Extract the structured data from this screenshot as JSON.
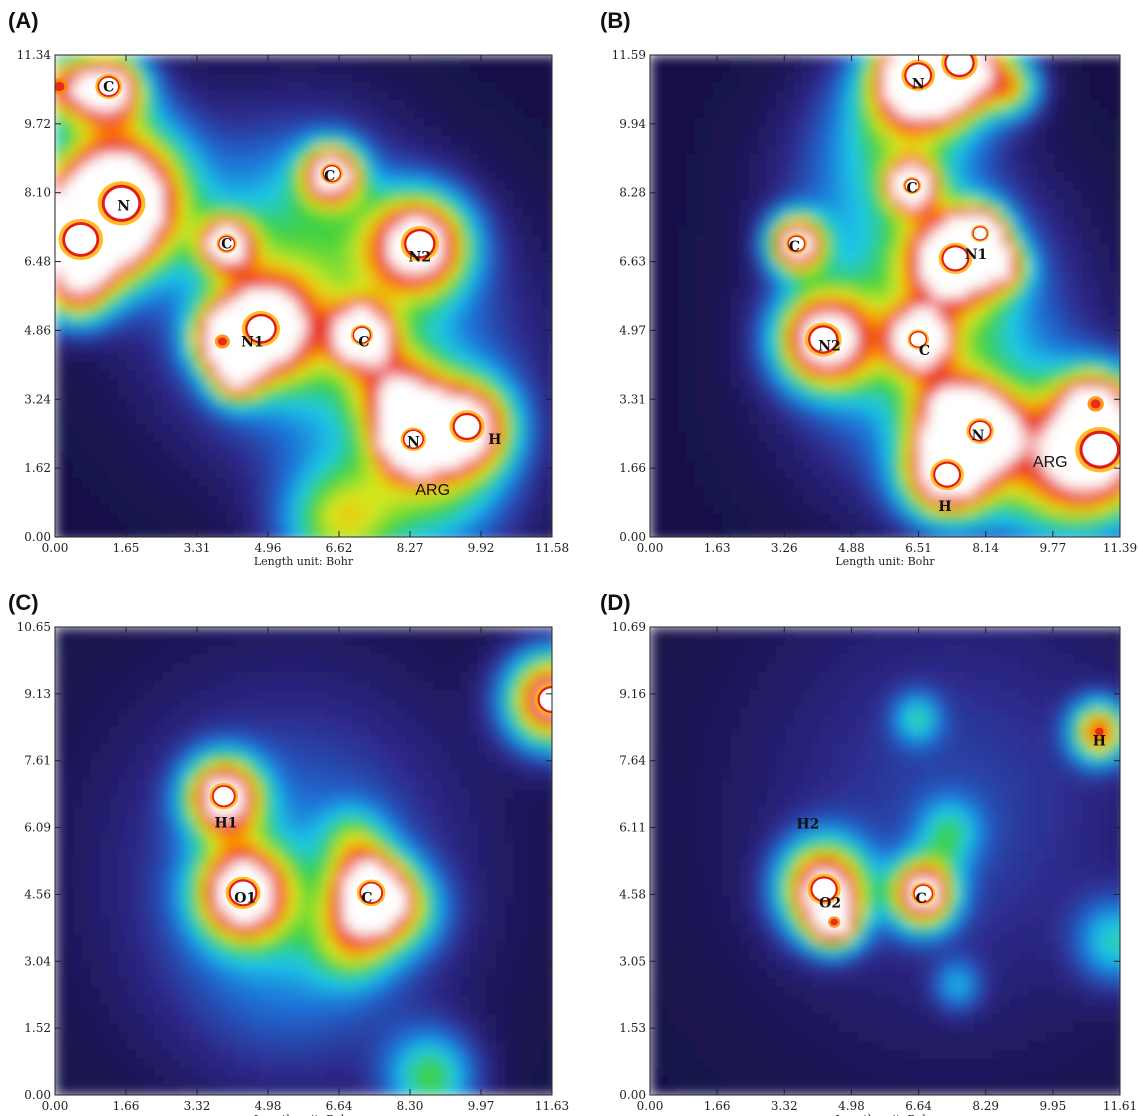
{
  "figure": {
    "panels": [
      "(A)",
      "(B)",
      "(C)",
      "(D)"
    ]
  },
  "chart_data": [
    {
      "type": "heatmap",
      "panel": "(A)",
      "xlabel": "Length unit: Bohr",
      "ylabel": "",
      "xlim": [
        0,
        11.58
      ],
      "ylim": [
        0,
        11.34
      ],
      "xticks": [
        "0.00",
        "1.65",
        "3.31",
        "4.96",
        "6.62",
        "8.27",
        "9.92",
        "11.58"
      ],
      "yticks": [
        "0.00",
        "1.62",
        "3.24",
        "4.86",
        "6.48",
        "8.10",
        "9.72",
        "11.34"
      ],
      "colormap": [
        "#140c3c",
        "#2e2a8c",
        "#1f6fd6",
        "#1ec8e8",
        "#3fd23f",
        "#d8e81e",
        "#ff8a00",
        "#e31a1a",
        "#ffffff"
      ],
      "annotations": [
        {
          "text": "C",
          "x": 1.25,
          "y": 10.6,
          "style": "serif"
        },
        {
          "text": "N",
          "x": 1.6,
          "y": 7.8,
          "style": "serif"
        },
        {
          "text": "C",
          "x": 6.4,
          "y": 8.5,
          "style": "serif"
        },
        {
          "text": "C",
          "x": 4.0,
          "y": 6.9,
          "style": "serif"
        },
        {
          "text": "N2",
          "x": 8.5,
          "y": 6.6,
          "style": "serif"
        },
        {
          "text": "N1",
          "x": 4.6,
          "y": 4.6,
          "style": "serif"
        },
        {
          "text": "C",
          "x": 7.2,
          "y": 4.6,
          "style": "serif"
        },
        {
          "text": "N",
          "x": 8.35,
          "y": 2.25,
          "style": "serif"
        },
        {
          "text": "H",
          "x": 10.25,
          "y": 2.3,
          "style": "serif"
        },
        {
          "text": "ARG",
          "x": 8.8,
          "y": 1.1,
          "style": "sans"
        }
      ],
      "peaks": [
        {
          "x": 1.25,
          "y": 10.6,
          "r": 0.42,
          "v": 1.0
        },
        {
          "x": 1.55,
          "y": 7.85,
          "r": 0.75,
          "v": 1.0
        },
        {
          "x": 0.6,
          "y": 7.0,
          "r": 0.7,
          "v": 1.0
        },
        {
          "x": 0.1,
          "y": 10.6,
          "r": 0.4,
          "v": 0.6
        },
        {
          "x": 1.4,
          "y": 9.0,
          "r": 0.9,
          "v": 0.35
        },
        {
          "x": 0.5,
          "y": 5.7,
          "r": 0.4,
          "v": 0.45
        },
        {
          "x": 6.45,
          "y": 8.55,
          "r": 0.35,
          "v": 0.95
        },
        {
          "x": 4.0,
          "y": 6.9,
          "r": 0.32,
          "v": 0.85
        },
        {
          "x": 8.5,
          "y": 6.9,
          "r": 0.6,
          "v": 1.0
        },
        {
          "x": 4.8,
          "y": 4.9,
          "r": 0.6,
          "v": 1.0
        },
        {
          "x": 3.9,
          "y": 4.6,
          "r": 0.35,
          "v": 0.7
        },
        {
          "x": 4.2,
          "y": 3.7,
          "r": 0.3,
          "v": 0.5
        },
        {
          "x": 7.15,
          "y": 4.75,
          "r": 0.35,
          "v": 1.0
        },
        {
          "x": 8.35,
          "y": 2.3,
          "r": 0.4,
          "v": 1.0
        },
        {
          "x": 9.6,
          "y": 2.6,
          "r": 0.55,
          "v": 0.9
        },
        {
          "x": 8.0,
          "y": 3.4,
          "r": 0.5,
          "v": 0.55
        },
        {
          "x": 8.8,
          "y": 1.2,
          "r": 0.9,
          "v": 0.4
        },
        {
          "x": 6.6,
          "y": 0.3,
          "r": 0.7,
          "v": 0.5
        },
        {
          "x": 5.2,
          "y": 5.5,
          "r": 1.5,
          "v": 0.28
        },
        {
          "x": 7.8,
          "y": 4.0,
          "r": 1.6,
          "v": 0.3
        },
        {
          "x": 5.7,
          "y": 7.8,
          "r": 1.2,
          "v": 0.22
        }
      ]
    },
    {
      "type": "heatmap",
      "panel": "(B)",
      "xlabel": "Length unit: Bohr",
      "ylabel": "",
      "xlim": [
        0,
        11.39
      ],
      "ylim": [
        0,
        11.59
      ],
      "xticks": [
        "0.00",
        "1.63",
        "3.26",
        "4.88",
        "6.51",
        "8.14",
        "9.77",
        "11.39"
      ],
      "yticks": [
        "0.00",
        "1.66",
        "3.31",
        "4.97",
        "6.63",
        "8.28",
        "9.94",
        "11.59"
      ],
      "colormap": [
        "#140c3c",
        "#2e2a8c",
        "#1f6fd6",
        "#1ec8e8",
        "#3fd23f",
        "#d8e81e",
        "#ff8a00",
        "#e31a1a",
        "#ffffff"
      ],
      "annotations": [
        {
          "text": "N",
          "x": 6.5,
          "y": 10.9,
          "style": "serif"
        },
        {
          "text": "C",
          "x": 6.35,
          "y": 8.4,
          "style": "serif"
        },
        {
          "text": "C",
          "x": 3.5,
          "y": 7.0,
          "style": "serif"
        },
        {
          "text": "N1",
          "x": 7.9,
          "y": 6.8,
          "style": "serif"
        },
        {
          "text": "N2",
          "x": 4.35,
          "y": 4.6,
          "style": "serif"
        },
        {
          "text": "C",
          "x": 6.65,
          "y": 4.5,
          "style": "serif"
        },
        {
          "text": "N",
          "x": 7.95,
          "y": 2.45,
          "style": "serif"
        },
        {
          "text": "H",
          "x": 7.15,
          "y": 0.75,
          "style": "serif"
        },
        {
          "text": "ARG",
          "x": 9.7,
          "y": 1.8,
          "style": "sans"
        }
      ],
      "peaks": [
        {
          "x": 6.5,
          "y": 11.1,
          "r": 0.55,
          "v": 1.0
        },
        {
          "x": 7.5,
          "y": 11.4,
          "r": 0.6,
          "v": 1.0
        },
        {
          "x": 6.3,
          "y": 10.3,
          "r": 0.9,
          "v": 0.4
        },
        {
          "x": 8.8,
          "y": 10.8,
          "r": 0.35,
          "v": 0.45
        },
        {
          "x": 6.35,
          "y": 8.45,
          "r": 0.3,
          "v": 0.9
        },
        {
          "x": 3.55,
          "y": 7.05,
          "r": 0.35,
          "v": 1.0
        },
        {
          "x": 7.4,
          "y": 6.7,
          "r": 0.55,
          "v": 1.0
        },
        {
          "x": 8.0,
          "y": 7.3,
          "r": 0.3,
          "v": 0.9
        },
        {
          "x": 8.6,
          "y": 6.5,
          "r": 0.3,
          "v": 0.5
        },
        {
          "x": 4.2,
          "y": 4.75,
          "r": 0.6,
          "v": 1.0
        },
        {
          "x": 6.5,
          "y": 4.75,
          "r": 0.35,
          "v": 1.0
        },
        {
          "x": 8.0,
          "y": 2.55,
          "r": 0.45,
          "v": 1.0
        },
        {
          "x": 7.2,
          "y": 1.5,
          "r": 0.55,
          "v": 1.0
        },
        {
          "x": 7.3,
          "y": 3.0,
          "r": 0.5,
          "v": 0.55
        },
        {
          "x": 10.9,
          "y": 2.1,
          "r": 0.8,
          "v": 0.85
        },
        {
          "x": 9.8,
          "y": 1.7,
          "r": 1.0,
          "v": 0.5
        },
        {
          "x": 10.8,
          "y": 3.2,
          "r": 0.4,
          "v": 0.6
        },
        {
          "x": 7.0,
          "y": 6.0,
          "r": 1.4,
          "v": 0.3
        },
        {
          "x": 5.3,
          "y": 8.5,
          "r": 1.1,
          "v": 0.2
        },
        {
          "x": 6.8,
          "y": 3.8,
          "r": 1.5,
          "v": 0.3
        }
      ]
    },
    {
      "type": "heatmap",
      "panel": "(C)",
      "xlabel": "Length unit: Bohr",
      "ylabel": "",
      "xlim": [
        0,
        11.63
      ],
      "ylim": [
        0,
        10.65
      ],
      "xticks": [
        "0.00",
        "1.66",
        "3.32",
        "4.98",
        "6.64",
        "8.30",
        "9.97",
        "11.63"
      ],
      "yticks": [
        "0.00",
        "1.52",
        "3.04",
        "4.56",
        "6.09",
        "7.61",
        "9.13",
        "10.65"
      ],
      "colormap": [
        "#140c3c",
        "#2e2a8c",
        "#1f6fd6",
        "#1ec8e8",
        "#3fd23f",
        "#d8e81e",
        "#ff8a00",
        "#e31a1a",
        "#ffffff"
      ],
      "annotations": [
        {
          "text": "H1",
          "x": 4.0,
          "y": 6.2,
          "style": "serif"
        },
        {
          "text": "O1",
          "x": 4.45,
          "y": 4.5,
          "style": "serif"
        },
        {
          "text": "C",
          "x": 7.3,
          "y": 4.5,
          "style": "serif"
        }
      ],
      "peaks": [
        {
          "x": 3.95,
          "y": 6.8,
          "r": 0.45,
          "v": 1.0
        },
        {
          "x": 4.4,
          "y": 4.6,
          "r": 0.55,
          "v": 1.0
        },
        {
          "x": 7.4,
          "y": 4.6,
          "r": 0.45,
          "v": 1.0
        },
        {
          "x": 7.0,
          "y": 3.5,
          "r": 0.5,
          "v": 0.4
        },
        {
          "x": 8.2,
          "y": 4.2,
          "r": 0.5,
          "v": 0.35
        },
        {
          "x": 7.0,
          "y": 5.8,
          "r": 0.4,
          "v": 0.3
        },
        {
          "x": 11.63,
          "y": 9.0,
          "r": 0.55,
          "v": 1.0
        },
        {
          "x": 8.8,
          "y": 0.4,
          "r": 0.55,
          "v": 0.45
        },
        {
          "x": 5.5,
          "y": 5.4,
          "r": 2.0,
          "v": 0.22
        },
        {
          "x": 5.5,
          "y": 3.0,
          "r": 1.4,
          "v": 0.15
        }
      ]
    },
    {
      "type": "heatmap",
      "panel": "(D)",
      "xlabel": "Length unit: Bohr",
      "ylabel": "",
      "xlim": [
        0,
        11.61
      ],
      "ylim": [
        0,
        10.69
      ],
      "xticks": [
        "0.00",
        "1.66",
        "3.32",
        "4.98",
        "6.64",
        "8.29",
        "9.95",
        "11.61"
      ],
      "yticks": [
        "0.00",
        "1.53",
        "3.05",
        "4.58",
        "6.11",
        "7.64",
        "9.16",
        "10.69"
      ],
      "colormap": [
        "#140c3c",
        "#2e2a8c",
        "#1f6fd6",
        "#1ec8e8",
        "#3fd23f",
        "#d8e81e",
        "#ff8a00",
        "#e31a1a",
        "#ffffff"
      ],
      "annotations": [
        {
          "text": "H2",
          "x": 3.9,
          "y": 6.2,
          "style": "serif"
        },
        {
          "text": "O2",
          "x": 4.45,
          "y": 4.4,
          "style": "serif"
        },
        {
          "text": "C",
          "x": 6.7,
          "y": 4.5,
          "style": "serif"
        },
        {
          "text": "H",
          "x": 11.1,
          "y": 8.1,
          "style": "serif"
        }
      ],
      "peaks": [
        {
          "x": 4.3,
          "y": 4.7,
          "r": 0.55,
          "v": 1.0
        },
        {
          "x": 4.55,
          "y": 3.95,
          "r": 0.3,
          "v": 0.7
        },
        {
          "x": 6.75,
          "y": 4.6,
          "r": 0.4,
          "v": 1.0
        },
        {
          "x": 11.1,
          "y": 8.3,
          "r": 0.35,
          "v": 0.75
        },
        {
          "x": 6.6,
          "y": 8.6,
          "r": 0.3,
          "v": 0.3
        },
        {
          "x": 7.4,
          "y": 6.0,
          "r": 0.4,
          "v": 0.3
        },
        {
          "x": 7.6,
          "y": 2.5,
          "r": 0.3,
          "v": 0.25
        },
        {
          "x": 11.5,
          "y": 3.5,
          "r": 0.5,
          "v": 0.35
        },
        {
          "x": 7.5,
          "y": 6.5,
          "r": 2.5,
          "v": 0.15
        }
      ]
    }
  ]
}
